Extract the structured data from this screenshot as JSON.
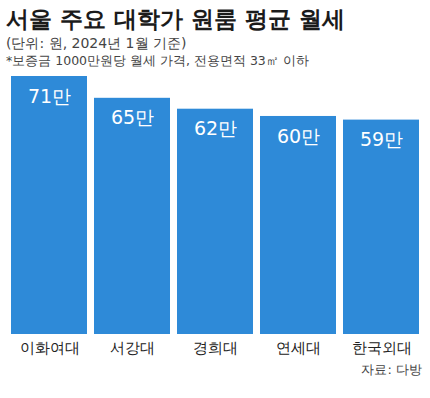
{
  "chart_data": {
    "type": "bar",
    "title": "서울 주요 대학가 원룸 평균 월세",
    "subtitle": "(단위: 원, 2024년 1월 기준)",
    "note": "*보증금 1000만원당 월세 가격, 전용면적 33㎡ 이하",
    "source": "자료: 다방",
    "categories": [
      "이화여대",
      "서강대",
      "경희대",
      "연세대",
      "한국외대"
    ],
    "values": [
      710000,
      650000,
      620000,
      600000,
      590000
    ],
    "value_labels": [
      "71만",
      "65만",
      "62만",
      "60만",
      "59만"
    ],
    "color": "#2e8ad8",
    "ylim": [
      0,
      710000
    ],
    "data_labels": true,
    "tick_labels": "x"
  }
}
